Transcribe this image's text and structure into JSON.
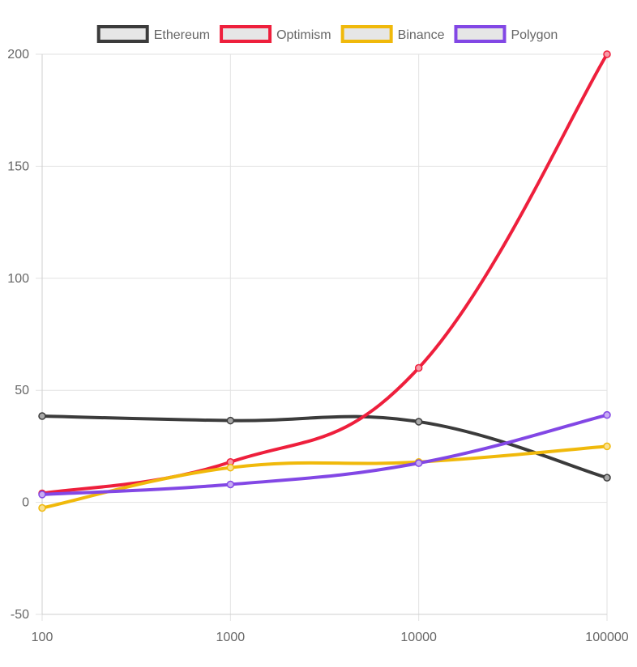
{
  "chart_data": {
    "type": "line",
    "x": [
      100,
      1000,
      10000,
      100000
    ],
    "xscale": "log",
    "xticks": [
      "100",
      "1000",
      "10000",
      "100000"
    ],
    "ylim": [
      -50,
      200
    ],
    "yticks": [
      "-50",
      "0",
      "50",
      "100",
      "150",
      "200"
    ],
    "grid": true,
    "legend": "top-center",
    "series": [
      {
        "name": "Ethereum",
        "color": "#3b3b3b",
        "values": [
          38.5,
          36.5,
          36,
          11
        ]
      },
      {
        "name": "Optimism",
        "color": "#ee1f3c",
        "values": [
          4,
          18,
          60,
          200
        ]
      },
      {
        "name": "Binance",
        "color": "#f0b90b",
        "values": [
          -2.5,
          15.5,
          18,
          25
        ]
      },
      {
        "name": "Polygon",
        "color": "#8247e5",
        "values": [
          3.5,
          8,
          17.5,
          39
        ]
      }
    ]
  }
}
